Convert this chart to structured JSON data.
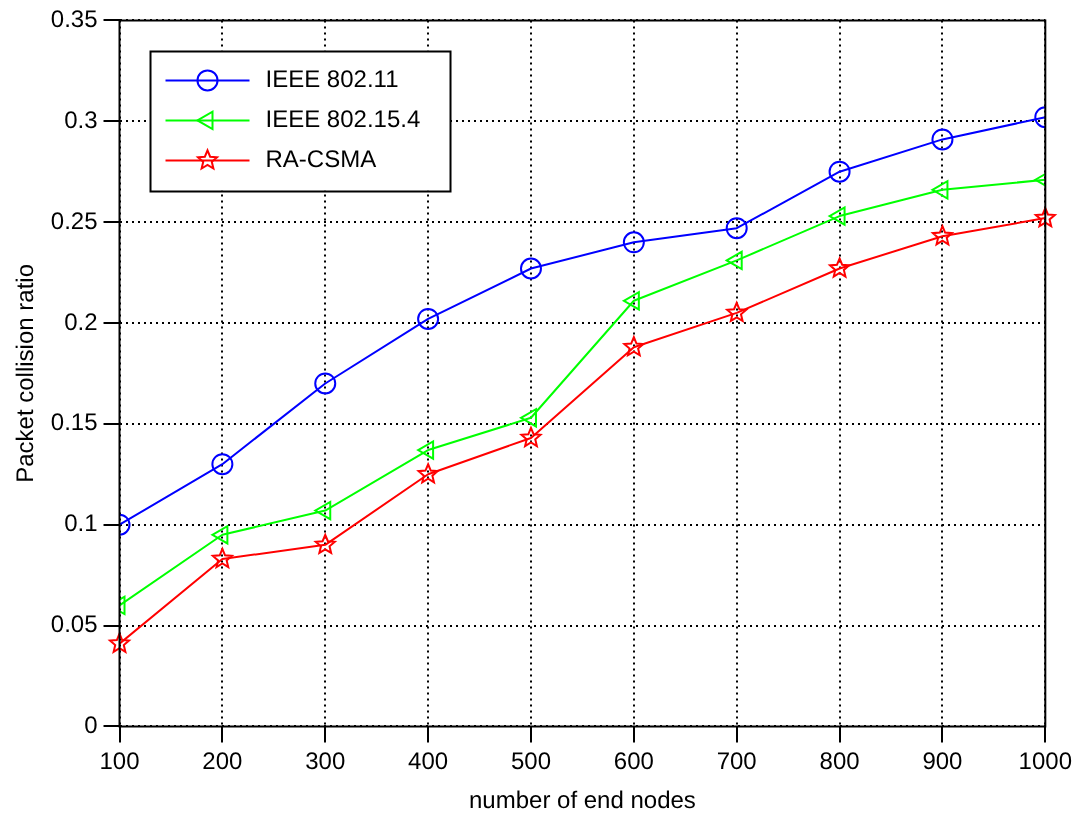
{
  "chart_data": {
    "type": "line",
    "xlabel": "number of end nodes",
    "ylabel": "Packet collision ratio",
    "x": [
      100,
      200,
      300,
      400,
      500,
      600,
      700,
      800,
      900,
      1000
    ],
    "xlim": [
      100,
      1000
    ],
    "xticks": [
      100,
      200,
      300,
      400,
      500,
      600,
      700,
      800,
      900,
      1000
    ],
    "ylim": [
      0,
      0.35
    ],
    "yticks": [
      0,
      0.05,
      0.1,
      0.15,
      0.2,
      0.25,
      0.3,
      0.35
    ],
    "grid": true,
    "legend": "top left",
    "line_style": "solid",
    "series": [
      {
        "name": "IEEE 802.11",
        "color": "#0000ff",
        "marker": "circle",
        "values": [
          0.1,
          0.13,
          0.17,
          0.202,
          0.227,
          0.24,
          0.247,
          0.275,
          0.291,
          0.302
        ]
      },
      {
        "name": "IEEE 802.15.4",
        "color": "#00ff00",
        "marker": "triangle",
        "values": [
          0.06,
          0.095,
          0.107,
          0.137,
          0.153,
          0.211,
          0.231,
          0.253,
          0.266,
          0.271
        ]
      },
      {
        "name": "RA-CSMA",
        "color": "#ff0000",
        "marker": "star",
        "values": [
          0.041,
          0.083,
          0.09,
          0.125,
          0.143,
          0.188,
          0.205,
          0.227,
          0.243,
          0.252
        ]
      }
    ]
  }
}
